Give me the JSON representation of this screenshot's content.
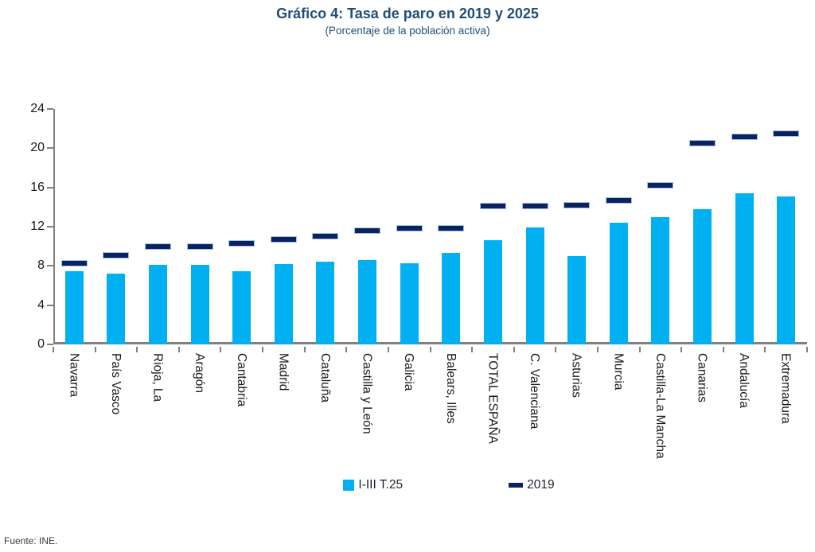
{
  "header": {
    "title": "Gráfico 4: Tasa de paro en 2019 y 2025",
    "subtitle": "(Porcentaje de la población activa)"
  },
  "footer": {
    "source": "Fuente: INE."
  },
  "colors": {
    "bar_2025": "#00B0F0",
    "dash_2019": "#0B2161",
    "title_blue": "#1F4E79",
    "axis_gray": "#808080",
    "label_black": "#1a1a1a"
  },
  "legend": {
    "items": [
      {
        "label": "I-III T.25",
        "swatch": "square",
        "color": "#00B0F0"
      },
      {
        "label": "2019",
        "swatch": "dash",
        "color": "#0B2161"
      }
    ]
  },
  "chart_data": {
    "type": "bar",
    "title": "Gráfico 4: Tasa de paro en 2019 y 2025",
    "subtitle": "(Porcentaje de la población activa)",
    "xlabel": "",
    "ylabel": "",
    "ylim": [
      0,
      24
    ],
    "yticks": [
      0,
      4,
      8,
      12,
      16,
      20,
      24
    ],
    "grid": false,
    "legend_position": "bottom",
    "categories": [
      "Navarra",
      "País Vasco",
      "Rioja, La",
      "Aragón",
      "Cantabria",
      "Madrid",
      "Cataluña",
      "Castilla y León",
      "Galicia",
      "Balears, Illes",
      "TOTAL ESPAÑA",
      "C. Valenciana",
      "Asturias",
      "Murcia",
      "Castilla-La Mancha",
      "Canarias",
      "Andalucía",
      "Extremadura"
    ],
    "series": [
      {
        "name": "I-III T.25",
        "style": "bar",
        "color": "#00B0F0",
        "values": [
          7.5,
          7.2,
          8.1,
          8.1,
          7.5,
          8.2,
          8.4,
          8.6,
          8.3,
          9.3,
          10.6,
          11.9,
          9.0,
          12.4,
          13.0,
          13.8,
          15.4,
          15.1
        ]
      },
      {
        "name": "2019",
        "style": "dash",
        "color": "#0B2161",
        "values": [
          8.3,
          9.1,
          10.0,
          10.0,
          10.3,
          10.7,
          11.0,
          11.6,
          11.8,
          11.8,
          14.1,
          14.1,
          14.2,
          14.7,
          16.2,
          20.5,
          21.2,
          21.5
        ]
      }
    ]
  }
}
